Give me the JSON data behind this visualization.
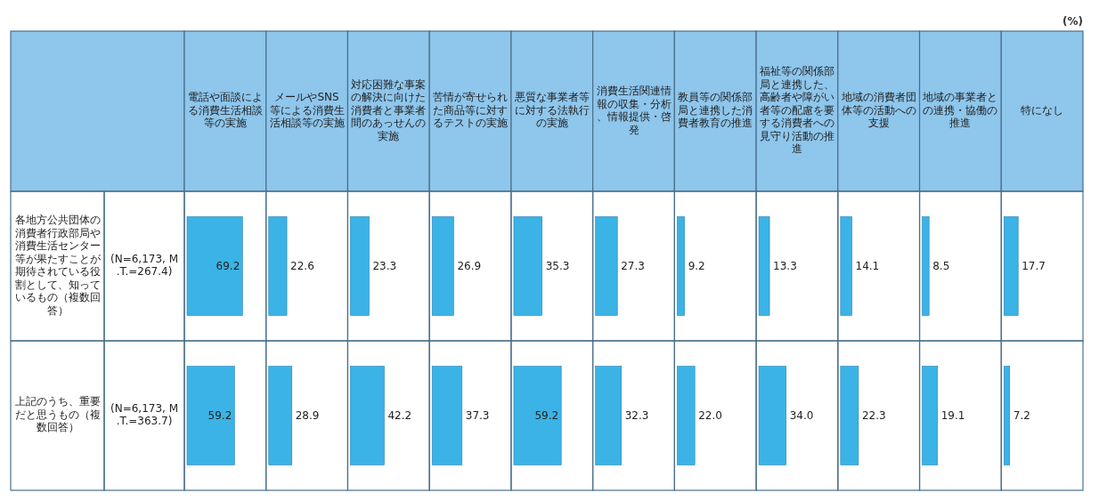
{
  "chart_data": [
    {
      "type": "bar",
      "orientation": "horizontal",
      "tick_labels": "y",
      "title": "電話や面談による消費生活相談等の実施",
      "categories": [
        "各地方公共団体の消費者行政部局や消費生活センター等が果たすことが期待されている役割として、知っているもの（複数回答）",
        "上記のうち、重要だと思うもの（複数回答）"
      ],
      "values": [
        69.2,
        59.2
      ],
      "color": "#3bb3e6",
      "data_labels": true,
      "annotations": [
        "(N=6,173, M.T.=267.4)",
        "(N=6,173, M.T.=363.7)"
      ]
    },
    {
      "type": "bar",
      "orientation": "horizontal",
      "tick_labels": false,
      "title": "メールやSNS等による消費生活相談等の実施",
      "categories": [
        "各地方公共団体の消費者行政部局や消費生活センター等が果たすことが期待されている役割として、知っているもの（複数回答）",
        "上記のうち、重要だと思うもの（複数回答）"
      ],
      "values": [
        22.6,
        28.9
      ],
      "color": "#3bb3e6",
      "data_labels": true
    },
    {
      "type": "bar",
      "orientation": "horizontal",
      "tick_labels": false,
      "title": "対応困難な事案の解決に向けた消費者と事業者間のあっせんの実施",
      "categories": [
        "各地方公共団体の消費者行政部局や消費生活センター等が果たすことが期待されている役割として、知っているもの（複数回答）",
        "上記のうち、重要だと思うもの（複数回答）"
      ],
      "values": [
        23.3,
        42.2
      ],
      "color": "#3bb3e6",
      "data_labels": true
    },
    {
      "type": "bar",
      "orientation": "horizontal",
      "tick_labels": false,
      "title": "苦情が寄せられた商品等に対するテストの実施",
      "categories": [
        "各地方公共団体の消費者行政部局や消費生活センター等が果たすことが期待されている役割として、知っているもの（複数回答）",
        "上記のうち、重要だと思うもの（複数回答）"
      ],
      "values": [
        26.9,
        37.3
      ],
      "color": "#3bb3e6",
      "data_labels": true
    },
    {
      "type": "bar",
      "orientation": "horizontal",
      "tick_labels": false,
      "title": "悪質な事業者等に対する法執行の実施",
      "categories": [
        "各地方公共団体の消費者行政部局や消費生活センター等が果たすことが期待されている役割として、知っているもの（複数回答）",
        "上記のうち、重要だと思うもの（複数回答）"
      ],
      "values": [
        35.3,
        59.2
      ],
      "color": "#3bb3e6",
      "data_labels": true
    },
    {
      "type": "bar",
      "orientation": "horizontal",
      "tick_labels": false,
      "title": "消費生活関連情報の収集・分析、情報提供・啓発",
      "categories": [
        "各地方公共団体の消費者行政部局や消費生活センター等が果たすことが期待されている役割として、知っているもの（複数回答）",
        "上記のうち、重要だと思うもの（複数回答）"
      ],
      "values": [
        27.3,
        32.3
      ],
      "color": "#3bb3e6",
      "data_labels": true
    },
    {
      "type": "bar",
      "orientation": "horizontal",
      "tick_labels": false,
      "title": "教員等の関係部局と連携した消費者教育の推進",
      "categories": [
        "各地方公共団体の消費者行政部局や消費生活センター等が果たすことが期待されている役割として、知っているもの（複数回答）",
        "上記のうち、重要だと思うもの（複数回答）"
      ],
      "values": [
        9.2,
        22.0
      ],
      "color": "#3bb3e6",
      "value_labels": [
        "9.2",
        "22.0"
      ]
    },
    {
      "type": "bar",
      "orientation": "horizontal",
      "tick_labels": false,
      "title": "福祉等の関係部局と連携した、高齢者や障がい者等の配慮を要する消費者への見守り活動の推進",
      "categories": [
        "各地方公共団体の消費者行政部局や消費生活センター等が果たすことが期待されている役割として、知っているもの（複数回答）",
        "上記のうち、重要だと思うもの（複数回答）"
      ],
      "values": [
        13.3,
        34.0
      ],
      "color": "#3bb3e6",
      "value_labels": [
        "13.3",
        "34.0"
      ]
    },
    {
      "type": "bar",
      "orientation": "horizontal",
      "tick_labels": false,
      "title": "地域の消費者団体等の活動への支援",
      "categories": [
        "各地方公共団体の消費者行政部局や消費生活センター等が果たすことが期待されている役割として、知っているもの（複数回答）",
        "上記のうち、重要だと思うもの（複数回答）"
      ],
      "values": [
        14.1,
        22.3
      ],
      "color": "#3bb3e6",
      "data_labels": true
    },
    {
      "type": "bar",
      "orientation": "horizontal",
      "tick_labels": false,
      "title": "地域の事業者との連携・協働の推進",
      "categories": [
        "各地方公共団体の消費者行政部局や消費生活センター等が果たすことが期待されている役割として、知っているもの（複数回答）",
        "上記のうち、重要だと思うもの（複数回答）"
      ],
      "values": [
        8.5,
        19.1
      ],
      "color": "#3bb3e6",
      "data_labels": true
    },
    {
      "type": "bar",
      "orientation": "horizontal",
      "tick_labels": false,
      "title": "特になし",
      "categories": [
        "各地方公共団体の消費者行政部局や消費生活センター等が果たすことが期待されている役割として、知っているもの（複数回答）",
        "上記のうち、重要だと思うもの（複数回答）"
      ],
      "values": [
        17.7,
        7.2
      ],
      "color": "#3bb3e6",
      "data_labels": true,
      "annotations": [
        "(%)"
      ]
    }
  ]
}
